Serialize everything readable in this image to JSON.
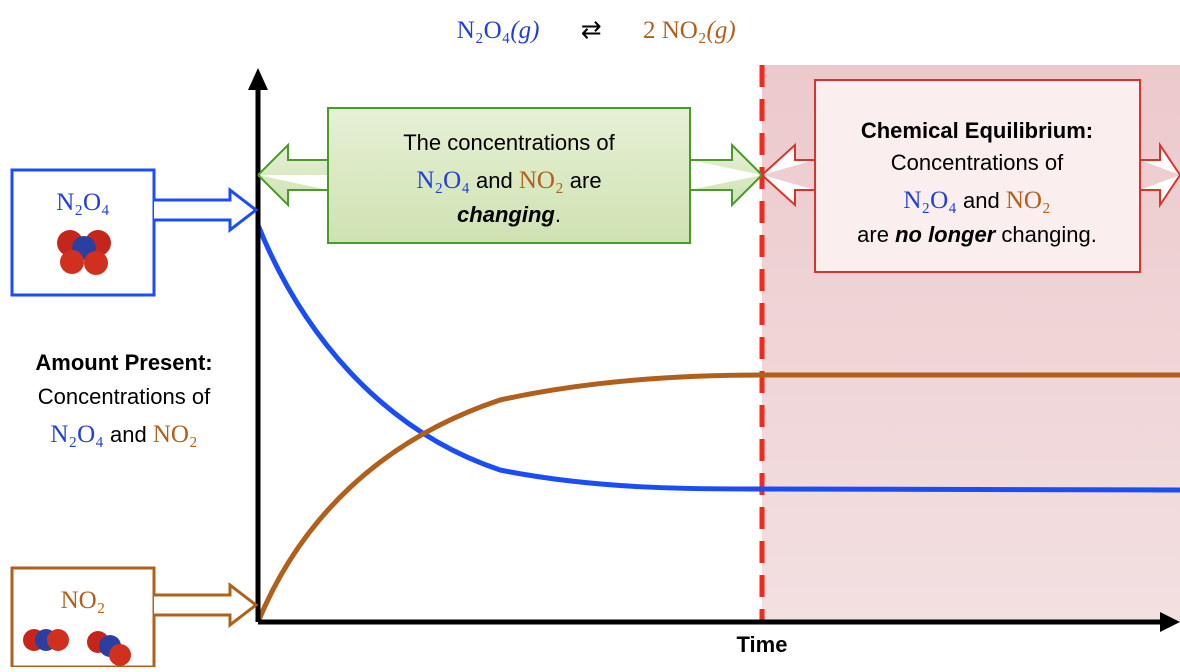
{
  "equation": {
    "reactant": "N₂O₄",
    "reactant_state": "(g)",
    "arrow": "⇄",
    "product": "2 NO₂",
    "product_state": "(g)"
  },
  "reactant_box": {
    "label": "N₂O₄"
  },
  "product_box": {
    "label": "NO₂"
  },
  "changing_box": {
    "line1": "The concentrations of",
    "line2": [
      "N₂O₄",
      " and ",
      "NO₂",
      " are"
    ],
    "line3": [
      "changing",
      "."
    ]
  },
  "equilibrium_box": {
    "title": "Chemical Equilibrium:",
    "line2": "Concentrations of",
    "line3": [
      "N₂O₄",
      " and ",
      "NO₂"
    ],
    "line4": [
      "are ",
      "no longer",
      " changing."
    ]
  },
  "y_axis_label": {
    "title": "Amount Present:",
    "line2": "Concentrations of",
    "line3": [
      "N₂O₄",
      " and ",
      "NO₂"
    ]
  },
  "x_axis_label": "Time"
}
